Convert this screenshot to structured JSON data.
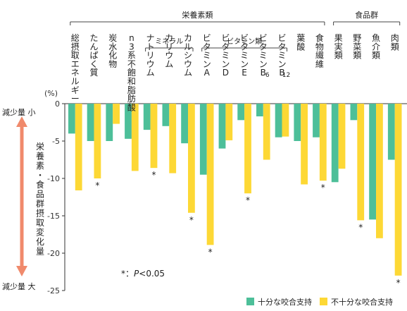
{
  "chart_data": {
    "type": "bar",
    "y_unit": "(%)",
    "ylim": [
      -25,
      0
    ],
    "yticks": [
      "0",
      "-5",
      "-10",
      "-15",
      "-20",
      "-25"
    ],
    "y_top_label": "減少量 小",
    "y_bottom_label": "減少量 大",
    "y_axis_title": "栄養素・食品群摂取変化量",
    "categories": [
      "総摂取エネルギー",
      "たんぱく質",
      "炭水化物",
      "n3系不飽和脂肪酸",
      "ナトリウム",
      "カリウム",
      "カルシウム",
      "ビタミンA",
      "ビタミンD",
      "ビタミンE",
      "ビタミンB6",
      "ビタミンB12",
      "葉酸",
      "食物繊維",
      "果実類",
      "野菜類",
      "魚介類",
      "肉類"
    ],
    "series": [
      {
        "name": "十分な咬合支持",
        "color": "#4dbf99",
        "values": [
          -4.0,
          -5.0,
          -5.0,
          -4.7,
          -3.5,
          -3.0,
          -5.3,
          -9.5,
          -6.0,
          -2.2,
          -1.7,
          -4.5,
          -5.0,
          -4.5,
          -10.5,
          -2.2,
          -15.5,
          -7.5
        ]
      },
      {
        "name": "不十分な咬合支持",
        "color": "#fdd835",
        "values": [
          -11.6,
          -10.0,
          -2.7,
          -9.0,
          -8.6,
          -9.3,
          -14.6,
          -18.9,
          -4.9,
          -12.0,
          -7.5,
          -4.4,
          -10.8,
          -10.3,
          -8.7,
          -15.6,
          -18.0,
          -23.0
        ]
      }
    ],
    "significance_marker": "*",
    "significant_categories": [
      "たんぱく質",
      "ナトリウム",
      "カルシウム",
      "ビタミンA",
      "ビタミンE",
      "食物繊維",
      "野菜類",
      "肉類"
    ],
    "footnote_star": "*",
    "footnote_p": "P",
    "footnote_rest": "<0.05",
    "groups": {
      "nutrients": "栄養素類",
      "food_groups": "食品群",
      "minerals": "ミネラル",
      "vitamins": "ビタミン類"
    }
  }
}
